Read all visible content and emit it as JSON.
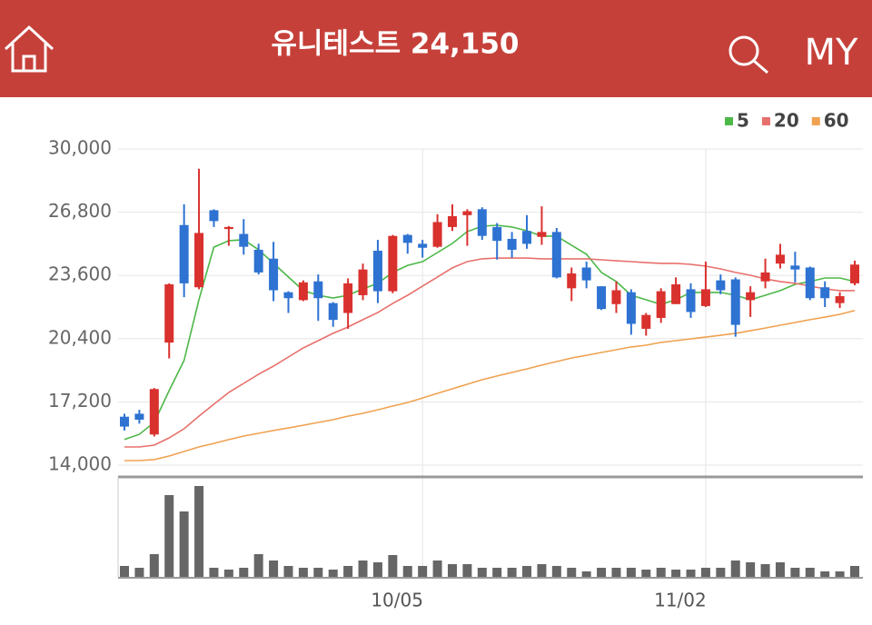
{
  "header": {
    "title": "유니테스트 24,150",
    "menu": "MY"
  },
  "chart_data": {
    "type": "candlestick",
    "categories": [
      null,
      null,
      null,
      null,
      null,
      null,
      null,
      null,
      null,
      null,
      null,
      null,
      null,
      null,
      null,
      null,
      null,
      null,
      null,
      null,
      "10/05",
      null,
      null,
      null,
      null,
      null,
      null,
      null,
      null,
      null,
      null,
      null,
      null,
      null,
      null,
      null,
      null,
      null,
      null,
      "11/02",
      null,
      null,
      null,
      null,
      null,
      null,
      null,
      null,
      null,
      null
    ],
    "open": [
      16450,
      16600,
      15550,
      20200,
      26150,
      23000,
      26900,
      25950,
      25700,
      24900,
      24450,
      22750,
      22350,
      23300,
      22200,
      21700,
      22600,
      24850,
      22800,
      25650,
      25200,
      25050,
      26050,
      26650,
      26950,
      26050,
      25450,
      25850,
      25550,
      25800,
      22950,
      24000,
      23050,
      22150,
      22750,
      20900,
      21450,
      22150,
      22900,
      22050,
      23350,
      23400,
      22350,
      23300,
      24200,
      24100,
      24000,
      23000,
      22200,
      23200
    ],
    "high": [
      16600,
      16800,
      17900,
      23200,
      27200,
      29000,
      26950,
      26100,
      26450,
      25200,
      25300,
      22800,
      23350,
      23650,
      22250,
      23450,
      24200,
      25400,
      25650,
      25700,
      25400,
      26700,
      27200,
      26950,
      27050,
      26250,
      25800,
      26650,
      27100,
      26000,
      24000,
      24300,
      23050,
      23300,
      22900,
      21700,
      22950,
      23500,
      23200,
      24300,
      23650,
      23500,
      23050,
      24450,
      25200,
      24800,
      24050,
      23300,
      22750,
      24350
    ],
    "low": [
      15750,
      16100,
      15450,
      19400,
      22500,
      22900,
      26050,
      25100,
      24650,
      23650,
      22300,
      21700,
      22300,
      21300,
      21000,
      20900,
      22350,
      22200,
      22700,
      24700,
      24500,
      25000,
      25850,
      25100,
      25400,
      24400,
      24500,
      24950,
      25150,
      23450,
      22300,
      22950,
      21850,
      21700,
      20600,
      20550,
      21200,
      22150,
      21450,
      22000,
      22650,
      20500,
      21500,
      22950,
      23950,
      23250,
      22350,
      22000,
      21950,
      23100
    ],
    "close": [
      15950,
      16300,
      17850,
      23150,
      23200,
      25750,
      26350,
      26050,
      25050,
      23750,
      22850,
      22450,
      23250,
      22450,
      21350,
      23200,
      23900,
      22800,
      25600,
      25250,
      25000,
      26300,
      26600,
      26850,
      25600,
      25350,
      24900,
      25200,
      25800,
      23500,
      23700,
      23350,
      21900,
      22850,
      21150,
      21600,
      22800,
      23150,
      21750,
      22900,
      22850,
      21100,
      22750,
      23750,
      24650,
      23900,
      22450,
      22450,
      22550,
      24150
    ],
    "up_color": "#d9312e",
    "down_color": "#2e72d2",
    "series": [
      {
        "name": "5",
        "color": "#4cb848",
        "values": [
          15300,
          15560,
          16160,
          17770,
          19290,
          22370,
          25030,
          25360,
          25400,
          24900,
          24210,
          23520,
          22830,
          22600,
          22460,
          22600,
          22920,
          23200,
          23750,
          24110,
          24300,
          24760,
          25220,
          25820,
          26090,
          26140,
          26050,
          25860,
          25590,
          25590,
          25130,
          24670,
          23750,
          23290,
          22600,
          22370,
          22140,
          22370,
          22740,
          22740,
          22740,
          22600,
          22370,
          22600,
          22830,
          23150,
          23290,
          23470,
          23470,
          23290
        ]
      },
      {
        "name": "20",
        "color": "#e8706c",
        "values": [
          14920,
          14920,
          15010,
          15380,
          15840,
          16480,
          17080,
          17680,
          18140,
          18600,
          19010,
          19470,
          19930,
          20300,
          20670,
          20990,
          21360,
          21720,
          22180,
          22600,
          23060,
          23520,
          23980,
          24300,
          24440,
          24480,
          24480,
          24480,
          24440,
          24440,
          24440,
          24440,
          24390,
          24340,
          24300,
          24250,
          24210,
          24210,
          24160,
          24070,
          23930,
          23750,
          23610,
          23420,
          23290,
          23200,
          23060,
          22920,
          22830,
          22830
        ]
      },
      {
        "name": "60",
        "color": "#f0a150",
        "values": [
          14230,
          14230,
          14280,
          14460,
          14690,
          14920,
          15100,
          15290,
          15470,
          15610,
          15750,
          15880,
          16020,
          16160,
          16300,
          16480,
          16620,
          16800,
          16990,
          17170,
          17400,
          17630,
          17860,
          18090,
          18320,
          18510,
          18690,
          18870,
          19060,
          19240,
          19420,
          19560,
          19700,
          19840,
          19980,
          20070,
          20210,
          20300,
          20390,
          20480,
          20570,
          20670,
          20800,
          20940,
          21080,
          21220,
          21360,
          21490,
          21630,
          21820
        ]
      }
    ],
    "ylim": [
      14000,
      30000
    ],
    "yticks": [
      {
        "value": 14000,
        "label": "14,000"
      },
      {
        "value": 17200,
        "label": "17,200"
      },
      {
        "value": 20400,
        "label": "20,400"
      },
      {
        "value": 23600,
        "label": "23,600"
      },
      {
        "value": 26800,
        "label": "26,800"
      },
      {
        "value": 30000,
        "label": "30,000"
      }
    ],
    "grid": true,
    "volume": [
      12,
      10,
      25,
      90,
      72,
      100,
      10,
      8,
      10,
      25,
      18,
      12,
      10,
      10,
      8,
      12,
      18,
      16,
      24,
      12,
      12,
      18,
      14,
      14,
      10,
      10,
      10,
      12,
      14,
      12,
      10,
      6,
      10,
      10,
      10,
      8,
      10,
      8,
      8,
      10,
      10,
      18,
      16,
      14,
      16,
      10,
      10,
      6,
      6,
      12
    ],
    "volume_color": "#666666",
    "volume_ylim": [
      0,
      100
    ],
    "legend": "top-right"
  }
}
